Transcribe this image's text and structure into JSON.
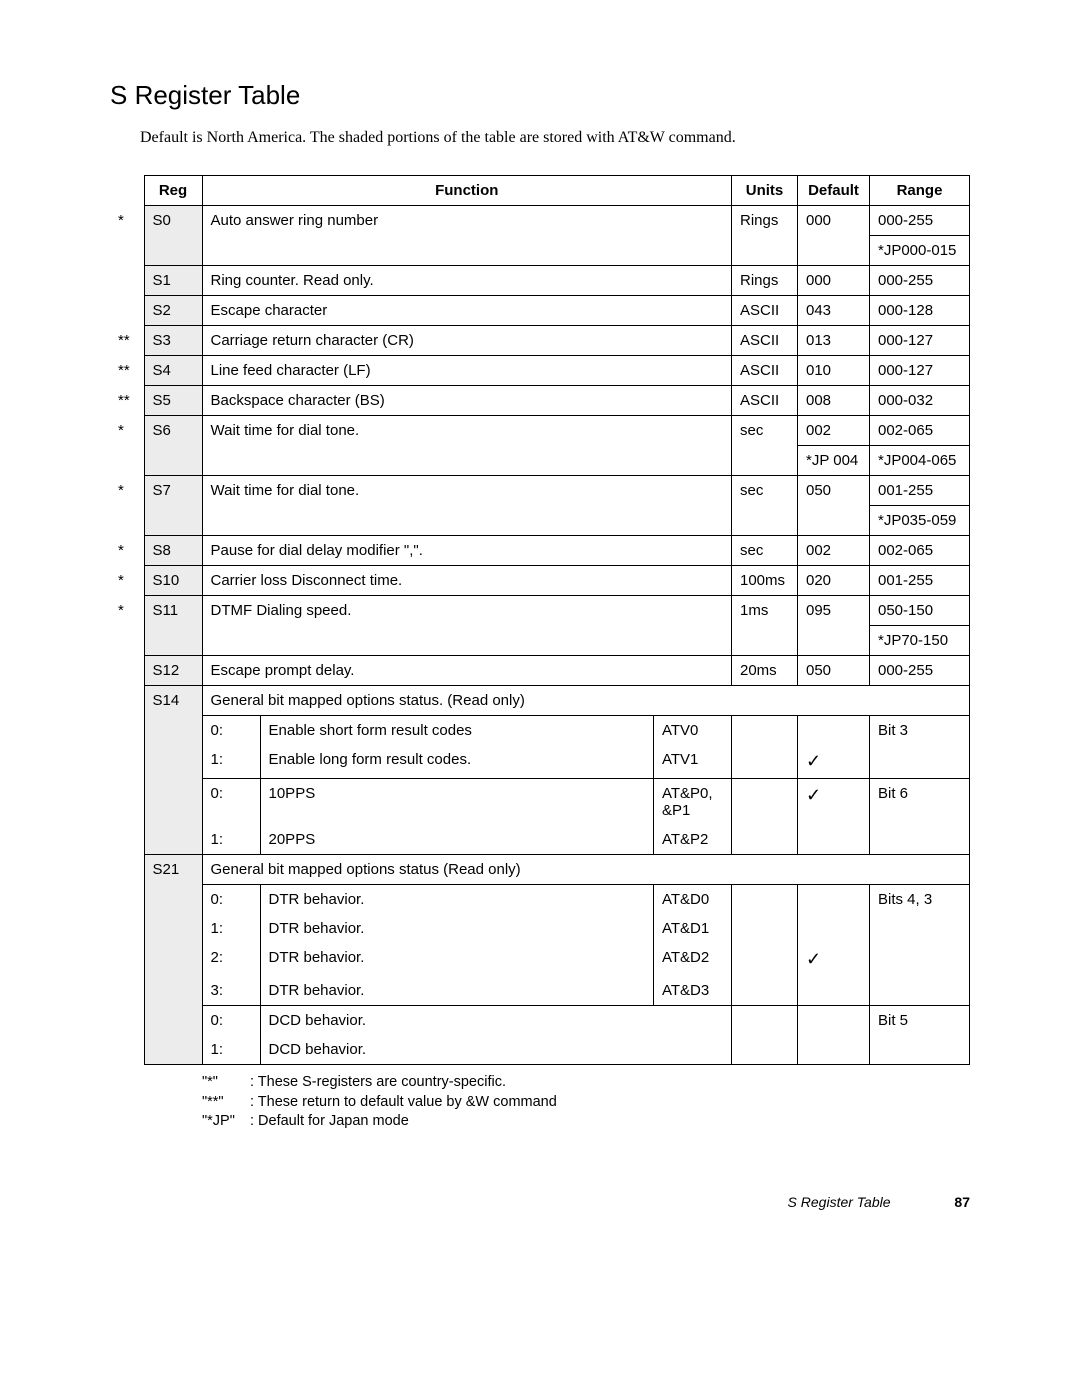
{
  "title": "S Register Table",
  "intro": "Default is North America. The shaded portions of the table are stored with AT&W command.",
  "headers": {
    "reg": "Reg",
    "function": "Function",
    "units": "Units",
    "default": "Default",
    "range": "Range"
  },
  "rows": {
    "s0": {
      "mark": "*",
      "reg": "S0",
      "func": "Auto answer ring number",
      "units": "Rings",
      "def": "000",
      "range1": "000-255",
      "range2": "*JP000-015"
    },
    "s1": {
      "mark": "",
      "reg": "S1",
      "func": "Ring counter. Read only.",
      "units": "Rings",
      "def": "000",
      "range": "000-255"
    },
    "s2": {
      "mark": "",
      "reg": "S2",
      "func": "Escape character",
      "units": "ASCII",
      "def": "043",
      "range": "000-128"
    },
    "s3": {
      "mark": "**",
      "reg": "S3",
      "func": "Carriage return character (CR)",
      "units": "ASCII",
      "def": "013",
      "range": "000-127"
    },
    "s4": {
      "mark": "**",
      "reg": "S4",
      "func": "Line feed character (LF)",
      "units": "ASCII",
      "def": "010",
      "range": "000-127"
    },
    "s5": {
      "mark": "**",
      "reg": "S5",
      "func": "Backspace character (BS)",
      "units": "ASCII",
      "def": "008",
      "range": "000-032"
    },
    "s6": {
      "mark": "*",
      "reg": "S6",
      "func": "Wait time for dial tone.",
      "units": "sec",
      "def1": "002",
      "def2": "*JP 004",
      "range1": "002-065",
      "range2": "*JP004-065"
    },
    "s7": {
      "mark": "*",
      "reg": "S7",
      "func": "Wait time for dial tone.",
      "units": "sec",
      "def": "050",
      "range1": "001-255",
      "range2": "*JP035-059"
    },
    "s8": {
      "mark": "*",
      "reg": "S8",
      "func": "Pause for dial delay modifier \",\".",
      "units": "sec",
      "def": "002",
      "range": "002-065"
    },
    "s10": {
      "mark": "*",
      "reg": "S10",
      "func": "Carrier loss Disconnect time.",
      "units": "100ms",
      "def": "020",
      "range": "001-255"
    },
    "s11": {
      "mark": "*",
      "reg": "S11",
      "func": "DTMF Dialing speed.",
      "units": "1ms",
      "def": "095",
      "range1": "050-150",
      "range2": "*JP70-150"
    },
    "s12": {
      "mark": "",
      "reg": "S12",
      "func": "Escape prompt delay.",
      "units": "20ms",
      "def": "050",
      "range": "000-255"
    },
    "s14": {
      "reg": "S14",
      "func": "General bit mapped options status. (Read only)",
      "b0": {
        "idx": "0:",
        "desc": "Enable short form result codes",
        "cmd": "ATV0",
        "range": "Bit 3"
      },
      "b1": {
        "idx": "1:",
        "desc": "Enable long form result codes.",
        "cmd": "ATV1",
        "check": "✓"
      },
      "b2": {
        "idx": "0:",
        "desc": "10PPS",
        "cmd": "AT&P0, &P1",
        "check": "✓",
        "range": "Bit 6"
      },
      "b3": {
        "idx": "1:",
        "desc": "20PPS",
        "cmd": "AT&P2"
      }
    },
    "s21": {
      "reg": "S21",
      "func": "General bit mapped options status (Read only)",
      "b0": {
        "idx": "0:",
        "desc": "DTR behavior.",
        "cmd": "AT&D0",
        "range": "Bits 4, 3"
      },
      "b1": {
        "idx": "1:",
        "desc": "DTR behavior.",
        "cmd": "AT&D1"
      },
      "b2": {
        "idx": "2:",
        "desc": "DTR behavior.",
        "cmd": "AT&D2",
        "check": "✓"
      },
      "b3": {
        "idx": "3:",
        "desc": "DTR behavior.",
        "cmd": "AT&D3"
      },
      "b4": {
        "idx": "0:",
        "desc": "DCD behavior.",
        "range": "Bit 5"
      },
      "b5": {
        "idx": "1:",
        "desc": "DCD behavior."
      }
    }
  },
  "legend": {
    "l1": {
      "k": "\"*\"",
      "t": ": These S-registers are country-specific."
    },
    "l2": {
      "k": "\"**\"",
      "t": ": These return to default value by &W command"
    },
    "l3": {
      "k": "\"*JP\"",
      "t": ": Default for Japan mode"
    }
  },
  "footer": {
    "title": "S Register Table",
    "page": "87"
  }
}
